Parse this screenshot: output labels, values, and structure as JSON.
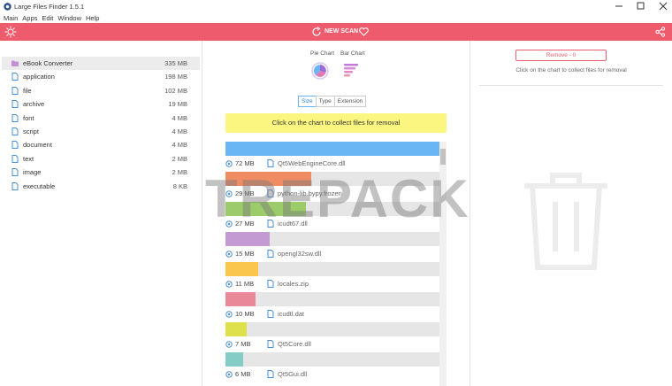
{
  "window": {
    "title": "Large Files Finder 1.5.1"
  },
  "menu": [
    "Main",
    "Apps",
    "Edit",
    "Window",
    "Help"
  ],
  "toolbar": {
    "new_scan": "NEW SCAN"
  },
  "sidebar": [
    {
      "name": "eBook Converter",
      "size": "335 MB"
    },
    {
      "name": "application",
      "size": "198 MB"
    },
    {
      "name": "file",
      "size": "102 MB"
    },
    {
      "name": "archive",
      "size": "19 MB"
    },
    {
      "name": "font",
      "size": "4 MB"
    },
    {
      "name": "script",
      "size": "4 MB"
    },
    {
      "name": "document",
      "size": "4 MB"
    },
    {
      "name": "text",
      "size": "2 MB"
    },
    {
      "name": "image",
      "size": "2 MB"
    },
    {
      "name": "executable",
      "size": "8 KB"
    }
  ],
  "view": {
    "pie_chart": "Pie Chart",
    "bar_chart": "Bar Chart",
    "tabs": [
      "Size",
      "Type",
      "Extension"
    ],
    "hint": "Click on the chart to collect files for removal"
  },
  "files": [
    {
      "size": "72 MB",
      "value": 72,
      "name": "Qt5WebEngineCore.dll",
      "color": "#6ab6f4"
    },
    {
      "size": "29 MB",
      "value": 29,
      "name": "python-lib.bypy.frozen",
      "color": "#f08c64"
    },
    {
      "size": "27 MB",
      "value": 27,
      "name": "icudt67.dll",
      "color": "#9ccc6a"
    },
    {
      "size": "15 MB",
      "value": 15,
      "name": "opengl32sw.dll",
      "color": "#c39ad2"
    },
    {
      "size": "11 MB",
      "value": 11,
      "name": "locales.zip",
      "color": "#fbc64e"
    },
    {
      "size": "10 MB",
      "value": 10,
      "name": "icudtl.dat",
      "color": "#e98899"
    },
    {
      "size": "7 MB",
      "value": 7,
      "name": "Qt5Core.dll",
      "color": "#dfe14c"
    },
    {
      "size": "6 MB",
      "value": 6,
      "name": "Qt5Gui.dll",
      "color": "#86ccc6"
    }
  ],
  "removal": {
    "button": "Remove - 0",
    "hint": "Click on the chart to collect files for removal"
  },
  "watermark": "TREPACK"
}
